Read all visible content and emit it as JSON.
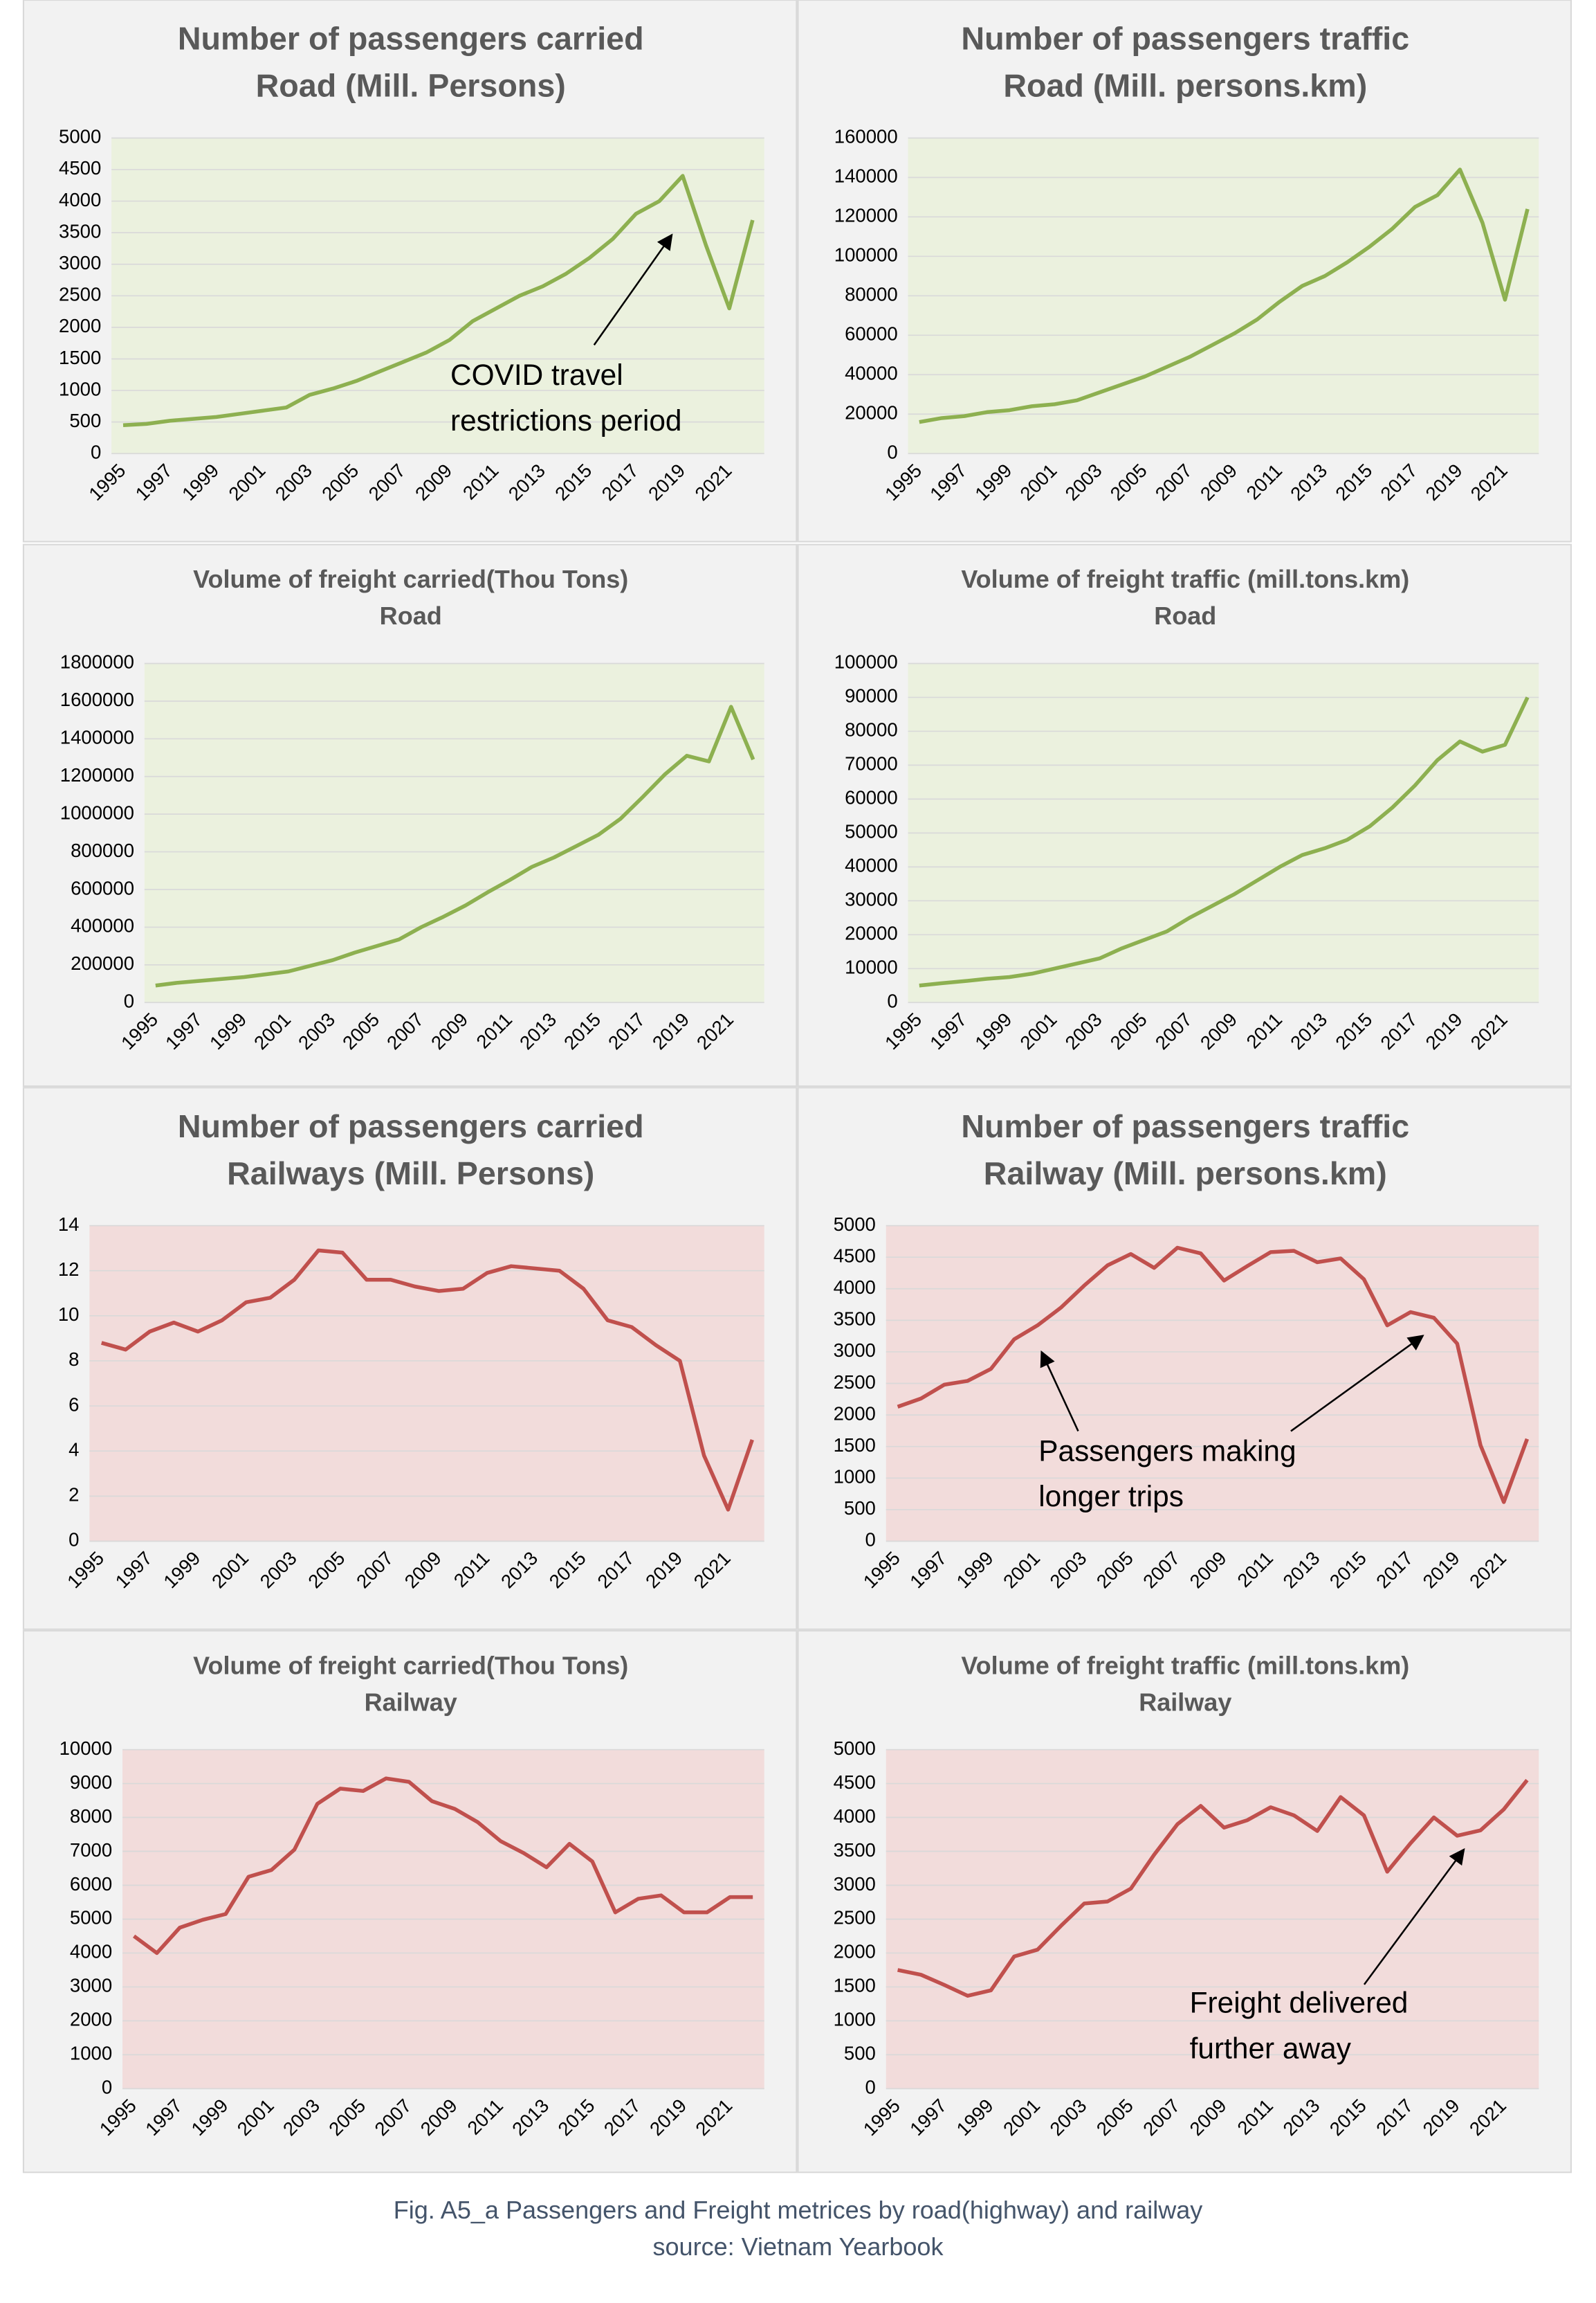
{
  "chart_data": [
    {
      "type": "line",
      "title": "Number of passengers carried",
      "subtitle": "Road (Mill. Persons)",
      "color": "#8db050",
      "plot_background": "#ebf1de",
      "x": [
        1995,
        1996,
        1997,
        1998,
        1999,
        2000,
        2001,
        2002,
        2003,
        2004,
        2005,
        2006,
        2007,
        2008,
        2009,
        2010,
        2011,
        2012,
        2013,
        2014,
        2015,
        2016,
        2017,
        2018,
        2019,
        2020,
        2021,
        2022
      ],
      "values": [
        450,
        470,
        520,
        550,
        580,
        630,
        680,
        730,
        930,
        1030,
        1150,
        1300,
        1450,
        1600,
        1800,
        2100,
        2300,
        2500,
        2650,
        2850,
        3100,
        3400,
        3800,
        4000,
        4400,
        3300,
        2300,
        3700
      ],
      "xlim": [
        1995,
        2022
      ],
      "xticks": [
        1995,
        1997,
        1999,
        2001,
        2003,
        2005,
        2007,
        2009,
        2011,
        2013,
        2015,
        2017,
        2019,
        2021
      ],
      "ylim": [
        0,
        5000
      ],
      "yticks": [
        0,
        500,
        1000,
        1500,
        2000,
        2500,
        3000,
        3500,
        4000,
        4500,
        5000
      ],
      "annotation_lines": [
        "COVID travel",
        "restrictions period"
      ]
    },
    {
      "type": "line",
      "title": "Number of passengers traffic",
      "subtitle": "Road (Mill. persons.km)",
      "color": "#8db050",
      "plot_background": "#ebf1de",
      "x": [
        1995,
        1996,
        1997,
        1998,
        1999,
        2000,
        2001,
        2002,
        2003,
        2004,
        2005,
        2006,
        2007,
        2008,
        2009,
        2010,
        2011,
        2012,
        2013,
        2014,
        2015,
        2016,
        2017,
        2018,
        2019,
        2020,
        2021,
        2022
      ],
      "values": [
        16000,
        18000,
        19000,
        21000,
        22000,
        24000,
        25000,
        27000,
        31000,
        35000,
        39000,
        44000,
        49000,
        55000,
        61000,
        68000,
        77000,
        85000,
        90000,
        97000,
        105000,
        114000,
        125000,
        131000,
        144000,
        117000,
        78000,
        124000
      ],
      "xlim": [
        1995,
        2022
      ],
      "xticks": [
        1995,
        1997,
        1999,
        2001,
        2003,
        2005,
        2007,
        2009,
        2011,
        2013,
        2015,
        2017,
        2019,
        2021
      ],
      "ylim": [
        0,
        160000
      ],
      "yticks": [
        0,
        20000,
        40000,
        60000,
        80000,
        100000,
        120000,
        140000,
        160000
      ]
    },
    {
      "type": "line",
      "title": "Volume of freight carried(Thou Tons)",
      "subtitle": "Road",
      "color": "#8db050",
      "plot_background": "#ebf1de",
      "x": [
        1995,
        1996,
        1997,
        1998,
        1999,
        2000,
        2001,
        2002,
        2003,
        2004,
        2005,
        2006,
        2007,
        2008,
        2009,
        2010,
        2011,
        2012,
        2013,
        2014,
        2015,
        2016,
        2017,
        2018,
        2019,
        2020,
        2021,
        2022
      ],
      "values": [
        90000,
        105000,
        115000,
        125000,
        135000,
        150000,
        165000,
        195000,
        225000,
        265000,
        300000,
        335000,
        400000,
        455000,
        515000,
        585000,
        650000,
        720000,
        770000,
        830000,
        890000,
        975000,
        1090000,
        1210000,
        1310000,
        1280000,
        1570000,
        1290000
      ],
      "xlim": [
        1995,
        2022
      ],
      "xticks": [
        1995,
        1997,
        1999,
        2001,
        2003,
        2005,
        2007,
        2009,
        2011,
        2013,
        2015,
        2017,
        2019,
        2021
      ],
      "ylim": [
        0,
        1800000
      ],
      "yticks": [
        0,
        200000,
        400000,
        600000,
        800000,
        1000000,
        1200000,
        1400000,
        1600000,
        1800000
      ]
    },
    {
      "type": "line",
      "title": "Volume of freight traffic (mill.tons.km)",
      "subtitle": "Road",
      "color": "#8db050",
      "plot_background": "#ebf1de",
      "x": [
        1995,
        1996,
        1997,
        1998,
        1999,
        2000,
        2001,
        2002,
        2003,
        2004,
        2005,
        2006,
        2007,
        2008,
        2009,
        2010,
        2011,
        2012,
        2013,
        2014,
        2015,
        2016,
        2017,
        2018,
        2019,
        2020,
        2021,
        2022
      ],
      "values": [
        5000,
        5700,
        6300,
        7000,
        7500,
        8500,
        10000,
        11500,
        13000,
        16000,
        18500,
        21000,
        25000,
        28500,
        32000,
        36000,
        40000,
        43500,
        45500,
        48000,
        52000,
        57500,
        64000,
        71500,
        77000,
        74000,
        76000,
        90000
      ],
      "xlim": [
        1995,
        2022
      ],
      "xticks": [
        1995,
        1997,
        1999,
        2001,
        2003,
        2005,
        2007,
        2009,
        2011,
        2013,
        2015,
        2017,
        2019,
        2021
      ],
      "ylim": [
        0,
        100000
      ],
      "yticks": [
        0,
        10000,
        20000,
        30000,
        40000,
        50000,
        60000,
        70000,
        80000,
        90000,
        100000
      ]
    },
    {
      "type": "line",
      "title": "Number of passengers carried",
      "subtitle": "Railways (Mill. Persons)",
      "color": "#c0504d",
      "plot_background": "#f2dcdb",
      "x": [
        1995,
        1996,
        1997,
        1998,
        1999,
        2000,
        2001,
        2002,
        2003,
        2004,
        2005,
        2006,
        2007,
        2008,
        2009,
        2010,
        2011,
        2012,
        2013,
        2014,
        2015,
        2016,
        2017,
        2018,
        2019,
        2020,
        2021,
        2022
      ],
      "values": [
        8.8,
        8.5,
        9.3,
        9.7,
        9.3,
        9.8,
        10.6,
        10.8,
        11.6,
        12.9,
        12.8,
        11.6,
        11.6,
        11.3,
        11.1,
        11.2,
        11.9,
        12.2,
        12.1,
        12.0,
        11.2,
        9.8,
        9.5,
        8.7,
        8.0,
        3.8,
        1.4,
        4.5
      ],
      "xlim": [
        1995,
        2022
      ],
      "xticks": [
        1995,
        1997,
        1999,
        2001,
        2003,
        2005,
        2007,
        2009,
        2011,
        2013,
        2015,
        2017,
        2019,
        2021
      ],
      "ylim": [
        0,
        14
      ],
      "yticks": [
        0,
        2,
        4,
        6,
        8,
        10,
        12,
        14
      ]
    },
    {
      "type": "line",
      "title": "Number of passengers traffic",
      "subtitle": "Railway (Mill. persons.km)",
      "color": "#c0504d",
      "plot_background": "#f2dcdb",
      "x": [
        1995,
        1996,
        1997,
        1998,
        1999,
        2000,
        2001,
        2002,
        2003,
        2004,
        2005,
        2006,
        2007,
        2008,
        2009,
        2010,
        2011,
        2012,
        2013,
        2014,
        2015,
        2016,
        2017,
        2018,
        2019,
        2020,
        2021,
        2022
      ],
      "values": [
        2130,
        2260,
        2480,
        2540,
        2730,
        3200,
        3420,
        3700,
        4050,
        4370,
        4550,
        4330,
        4650,
        4560,
        4130,
        4360,
        4580,
        4600,
        4420,
        4480,
        4150,
        3420,
        3630,
        3540,
        3130,
        1520,
        620,
        1620
      ],
      "xlim": [
        1995,
        2022
      ],
      "xticks": [
        1995,
        1997,
        1999,
        2001,
        2003,
        2005,
        2007,
        2009,
        2011,
        2013,
        2015,
        2017,
        2019,
        2021
      ],
      "ylim": [
        0,
        5000
      ],
      "yticks": [
        0,
        500,
        1000,
        1500,
        2000,
        2500,
        3000,
        3500,
        4000,
        4500,
        5000
      ],
      "annotation_lines": [
        "Passengers making",
        "longer trips"
      ]
    },
    {
      "type": "line",
      "title": "Volume of freight carried(Thou Tons)",
      "subtitle": "Railway",
      "color": "#c0504d",
      "plot_background": "#f2dcdb",
      "x": [
        1995,
        1996,
        1997,
        1998,
        1999,
        2000,
        2001,
        2002,
        2003,
        2004,
        2005,
        2006,
        2007,
        2008,
        2009,
        2010,
        2011,
        2012,
        2013,
        2014,
        2015,
        2016,
        2017,
        2018,
        2019,
        2020,
        2021,
        2022
      ],
      "values": [
        4500,
        4000,
        4750,
        4980,
        5150,
        6250,
        6450,
        7050,
        8400,
        8850,
        8780,
        9150,
        9050,
        8480,
        8250,
        7860,
        7300,
        6950,
        6530,
        7220,
        6700,
        5200,
        5600,
        5700,
        5200,
        5200,
        5650,
        5650
      ],
      "xlim": [
        1995,
        2022
      ],
      "xticks": [
        1995,
        1997,
        1999,
        2001,
        2003,
        2005,
        2007,
        2009,
        2011,
        2013,
        2015,
        2017,
        2019,
        2021
      ],
      "ylim": [
        0,
        10000
      ],
      "yticks": [
        0,
        1000,
        2000,
        3000,
        4000,
        5000,
        6000,
        7000,
        8000,
        9000,
        10000
      ]
    },
    {
      "type": "line",
      "title": "Volume of freight traffic (mill.tons.km)",
      "subtitle": "Railway",
      "color": "#c0504d",
      "plot_background": "#f2dcdb",
      "x": [
        1995,
        1996,
        1997,
        1998,
        1999,
        2000,
        2001,
        2002,
        2003,
        2004,
        2005,
        2006,
        2007,
        2008,
        2009,
        2010,
        2011,
        2012,
        2013,
        2014,
        2015,
        2016,
        2017,
        2018,
        2019,
        2020,
        2021,
        2022
      ],
      "values": [
        1750,
        1680,
        1530,
        1370,
        1450,
        1950,
        2050,
        2400,
        2730,
        2760,
        2950,
        3450,
        3900,
        4170,
        3850,
        3960,
        4150,
        4030,
        3800,
        4300,
        4030,
        3200,
        3620,
        4000,
        3730,
        3810,
        4120,
        4550
      ],
      "xlim": [
        1995,
        2022
      ],
      "xticks": [
        1995,
        1997,
        1999,
        2001,
        2003,
        2005,
        2007,
        2009,
        2011,
        2013,
        2015,
        2017,
        2019,
        2021
      ],
      "ylim": [
        0,
        5000
      ],
      "yticks": [
        0,
        500,
        1000,
        1500,
        2000,
        2500,
        3000,
        3500,
        4000,
        4500,
        5000
      ],
      "annotation_lines": [
        "Freight delivered",
        "further away"
      ]
    }
  ],
  "caption": {
    "line1": "Fig. A5_a Passengers and Freight metrices by road(highway) and railway",
    "line2": "source: Vietnam Yearbook"
  }
}
